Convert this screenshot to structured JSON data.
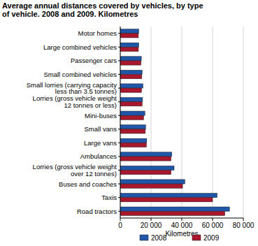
{
  "chart_data": {
    "type": "bar",
    "orientation": "horizontal",
    "title": "Average annual distances covered by vehicles, by type\nof vehicle. 2008 and 2009. Kilometres",
    "xlabel": "Kilometres",
    "categories": [
      "Motor homes",
      "Large combined vehicles",
      "Passenger cars",
      "Small combined vehicles",
      "Small lorries (carrying capacity\nless than 3.5 tonnes)",
      "Lorries (gross vehicle weight\n12 tonnes or less)",
      "Mini-buses",
      "Small vans",
      "Large vans",
      "Ambulances",
      "Lorries (gross vehicle weight\nover 12 tonnes)",
      "Buses and coaches",
      "Taxis",
      "Road tractors"
    ],
    "series": [
      {
        "name": "2008",
        "color": "#1f56a8",
        "values": [
          12000,
          12000,
          13700,
          14200,
          14800,
          14500,
          16000,
          16500,
          17200,
          33500,
          35000,
          42000,
          63000,
          71000
        ]
      },
      {
        "name": "2009",
        "color": "#a8172c",
        "values": [
          11800,
          11800,
          13500,
          14000,
          13800,
          14200,
          15200,
          16300,
          17000,
          33000,
          33000,
          40500,
          60000,
          68000
        ]
      }
    ],
    "xlim": [
      0,
      80000
    ],
    "xticks": [
      0,
      {
        "value": 20000,
        "label": "20 000"
      },
      {
        "value": 40000,
        "label": "40 000"
      },
      {
        "value": 60000,
        "label": "60 000"
      },
      {
        "value": 80000,
        "label": "80 000"
      }
    ],
    "grid": true,
    "legend": "bottom"
  }
}
